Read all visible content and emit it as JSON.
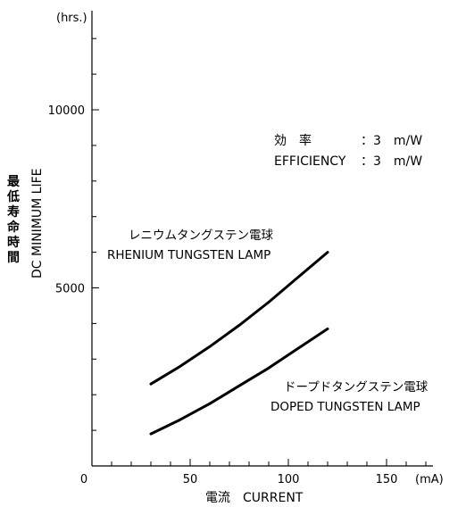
{
  "chart_data": {
    "type": "line",
    "x_unit": "(mA)",
    "y_unit": "(hrs.)",
    "xlabel": "電流　CURRENT",
    "ylabel_jp": "最低寿命時間",
    "ylabel_en": "DC MINIMUM LIFE",
    "xlim": [
      0,
      170
    ],
    "ylim": [
      0,
      13000
    ],
    "x_tick_labels": [
      {
        "value": 0,
        "label": "0"
      },
      {
        "value": 50,
        "label": "50"
      },
      {
        "value": 100,
        "label": "100"
      },
      {
        "value": 150,
        "label": "150"
      }
    ],
    "x_minor_step": 10,
    "y_tick_labels": [
      {
        "value": 5000,
        "label": "5000"
      },
      {
        "value": 10000,
        "label": "10000"
      }
    ],
    "y_minor_step": 1000,
    "annotations": {
      "efficiency_jp_label": "効　率",
      "efficiency_jp_value": "：3　m/W",
      "efficiency_en_label": "EFFICIENCY",
      "efficiency_en_value": "：3　m/W"
    },
    "series": [
      {
        "label_jp": "レニウムタングステン電球",
        "label_en": "RHENIUM  TUNGSTEN LAMP",
        "x": [
          30,
          45,
          60,
          75,
          90,
          105,
          120
        ],
        "y": [
          2300,
          2800,
          3350,
          3950,
          4600,
          5300,
          6000
        ]
      },
      {
        "label_jp": "ドープドタングステン電球",
        "label_en": "DOPED TUNGSTEN LAMP",
        "x": [
          30,
          45,
          60,
          75,
          90,
          105,
          120
        ],
        "y": [
          900,
          1300,
          1750,
          2250,
          2750,
          3300,
          3850
        ]
      }
    ]
  }
}
